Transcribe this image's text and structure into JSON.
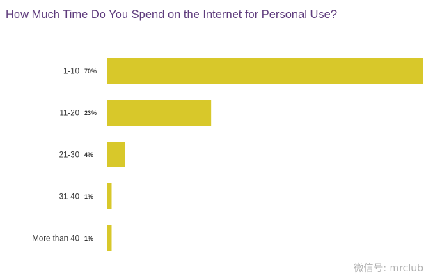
{
  "chart_data": {
    "type": "bar",
    "orientation": "horizontal",
    "title": "How Much Time Do You Spend on the Internet for Personal Use?",
    "categories": [
      "1-10",
      "11-20",
      "21-30",
      "31-40",
      "More than 40"
    ],
    "values": [
      70,
      23,
      4,
      1,
      1
    ],
    "value_labels": [
      "70%",
      "23%",
      "4%",
      "1%",
      "1%"
    ],
    "unit": "%",
    "xlim": [
      0,
      70
    ],
    "grid": false,
    "legend": "none",
    "bar_color": "#d8c82a",
    "title_color": "#5e3b7c"
  },
  "watermark": "微信号: mrclub"
}
